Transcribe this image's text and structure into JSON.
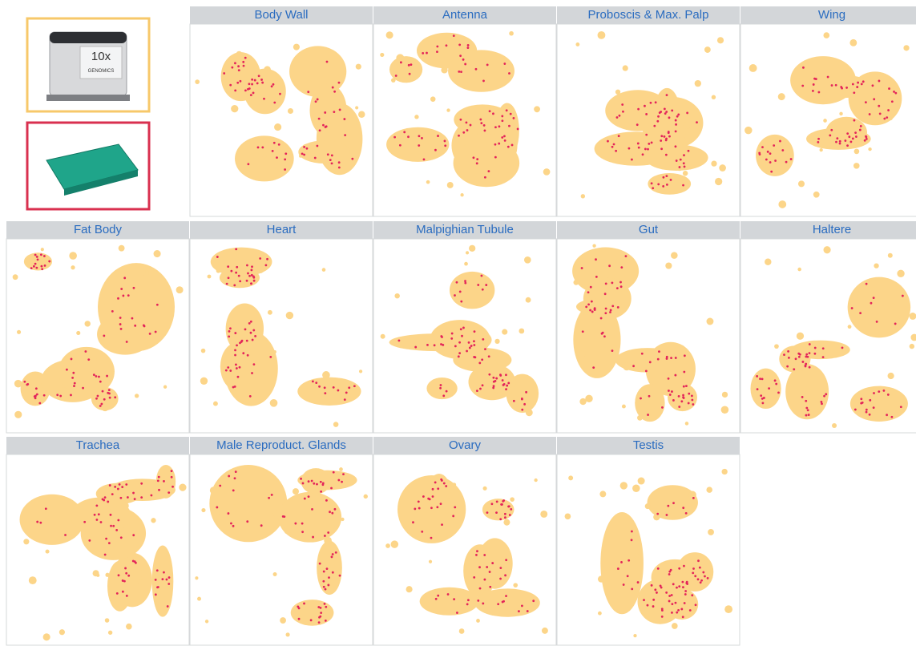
{
  "instrument_logo": {
    "mark": "10x",
    "name": "GENOMICS"
  },
  "panels": [
    {
      "title": "Body Wall"
    },
    {
      "title": "Antenna"
    },
    {
      "title": "Proboscis & Max. Palp"
    },
    {
      "title": "Wing"
    },
    {
      "title": "Fat Body"
    },
    {
      "title": "Heart"
    },
    {
      "title": "Malpighian Tubule"
    },
    {
      "title": "Gut"
    },
    {
      "title": "Haltere"
    },
    {
      "title": "Trachea"
    },
    {
      "title": "Male Reproduct. Glands"
    },
    {
      "title": "Ovary"
    },
    {
      "title": "Testis"
    }
  ]
}
